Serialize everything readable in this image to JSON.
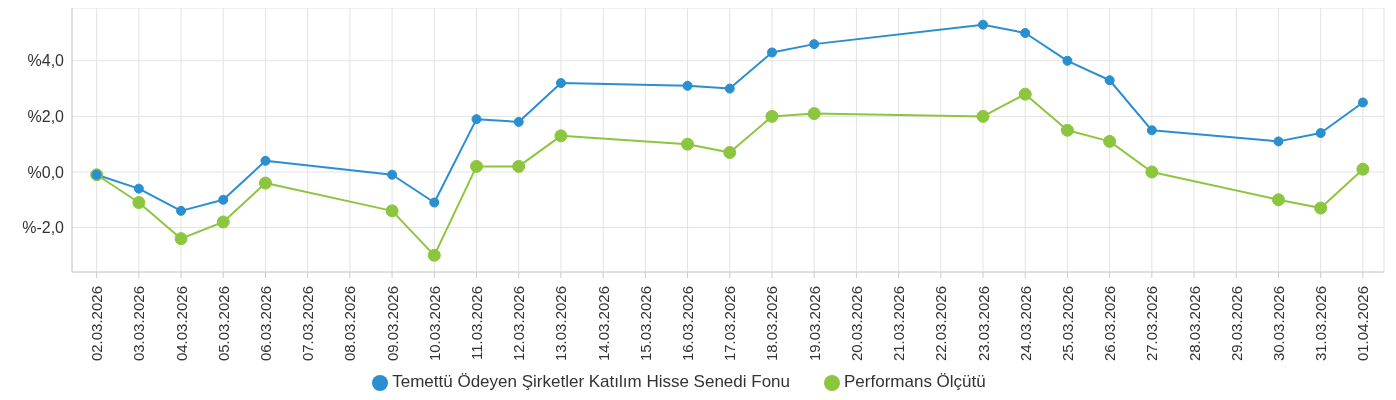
{
  "chart_data": {
    "type": "line",
    "x": [
      "2026-03-02",
      "2026-03-03",
      "2026-03-04",
      "2026-03-05",
      "2026-03-06",
      "2026-03-09",
      "2026-03-10",
      "2026-03-11",
      "2026-03-12",
      "2026-03-13",
      "2026-03-16",
      "2026-03-17",
      "2026-03-18",
      "2026-03-19",
      "2026-03-23",
      "2026-03-24",
      "2026-03-25",
      "2026-03-26",
      "2026-03-27",
      "2026-03-30",
      "2026-03-31",
      "2026-04-01"
    ],
    "series": [
      {
        "name": "Temettü Ödeyen Şirketler Katılım Hisse Senedi Fonu",
        "color": "#2a8fd0",
        "values": [
          -0.1,
          -0.6,
          -1.4,
          -1.0,
          0.4,
          -0.1,
          -1.1,
          1.9,
          1.8,
          3.2,
          3.1,
          3.0,
          4.3,
          4.6,
          5.3,
          5.0,
          4.0,
          3.3,
          1.5,
          1.1,
          1.4,
          2.5
        ]
      },
      {
        "name": "Performans Ölçütü",
        "color": "#8cc63f",
        "values": [
          -0.1,
          -1.1,
          -2.4,
          -1.8,
          -0.4,
          -1.4,
          -3.0,
          0.2,
          0.2,
          1.3,
          1.0,
          0.7,
          2.0,
          2.1,
          2.0,
          2.8,
          1.5,
          1.1,
          0.0,
          -1.0,
          -1.3,
          0.1
        ]
      }
    ],
    "xlim": [
      "2026-03-01T10:00",
      "2026-04-01T12:00"
    ],
    "xticks": [
      {
        "value": "2026-03-02",
        "label": "02.03.2026"
      },
      {
        "value": "2026-03-03",
        "label": "03.03.2026"
      },
      {
        "value": "2026-03-04",
        "label": "04.03.2026"
      },
      {
        "value": "2026-03-05",
        "label": "05.03.2026"
      },
      {
        "value": "2026-03-06",
        "label": "06.03.2026"
      },
      {
        "value": "2026-03-07",
        "label": "07.03.2026"
      },
      {
        "value": "2026-03-08",
        "label": "08.03.2026"
      },
      {
        "value": "2026-03-09",
        "label": "09.03.2026"
      },
      {
        "value": "2026-03-10",
        "label": "10.03.2026"
      },
      {
        "value": "2026-03-11",
        "label": "11.03.2026"
      },
      {
        "value": "2026-03-12",
        "label": "12.03.2026"
      },
      {
        "value": "2026-03-13",
        "label": "13.03.2026"
      },
      {
        "value": "2026-03-14",
        "label": "14.03.2026"
      },
      {
        "value": "2026-03-15",
        "label": "15.03.2026"
      },
      {
        "value": "2026-03-16",
        "label": "16.03.2026"
      },
      {
        "value": "2026-03-17",
        "label": "17.03.2026"
      },
      {
        "value": "2026-03-18",
        "label": "18.03.2026"
      },
      {
        "value": "2026-03-19",
        "label": "19.03.2026"
      },
      {
        "value": "2026-03-20",
        "label": "20.03.2026"
      },
      {
        "value": "2026-03-21",
        "label": "21.03.2026"
      },
      {
        "value": "2026-03-22",
        "label": "22.03.2026"
      },
      {
        "value": "2026-03-23",
        "label": "23.03.2026"
      },
      {
        "value": "2026-03-24",
        "label": "24.03.2026"
      },
      {
        "value": "2026-03-25",
        "label": "25.03.2026"
      },
      {
        "value": "2026-03-26",
        "label": "26.03.2026"
      },
      {
        "value": "2026-03-27",
        "label": "27.03.2026"
      },
      {
        "value": "2026-03-28",
        "label": "28.03.2026"
      },
      {
        "value": "2026-03-29",
        "label": "29.03.2026"
      },
      {
        "value": "2026-03-30",
        "label": "30.03.2026"
      },
      {
        "value": "2026-03-31",
        "label": "31.03.2026"
      },
      {
        "value": "2026-04-01",
        "label": "01.04.2026"
      }
    ],
    "ylim": [
      -3.6,
      5.9
    ],
    "yticks": [
      {
        "value": -2,
        "label": "%-2,0"
      },
      {
        "value": 0,
        "label": "%0,0"
      },
      {
        "value": 2,
        "label": "%2,0"
      },
      {
        "value": 4,
        "label": "%4,0"
      }
    ],
    "grid": true,
    "legend": "bottom",
    "marker": "circle",
    "line_style": "solid"
  }
}
